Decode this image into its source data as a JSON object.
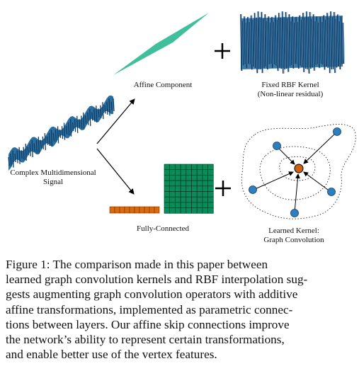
{
  "labels": {
    "affine": "Affine Component",
    "rbf_line1": "Fixed RBF Kernel",
    "rbf_line2": "(Non-linear residual)",
    "signal_line1": "Complex Multidimensional",
    "signal_line2": "Signal",
    "fully_connected": "Fully-Connected",
    "learned_line1": "Learned Kernel:",
    "learned_line2": "Graph Convolution",
    "plus": "+"
  },
  "caption": {
    "lines": [
      "Figure 1: The comparison made in this paper between",
      "learned graph convolution kernels and RBF interpolation sug-",
      "gests augmenting graph convolution operators with additive",
      "affine transformations, implemented as parametric connec-",
      "tions between layers. Our affine skip connections improve",
      "the network’s ability to represent certain transformations,",
      "and enable better use of the vertex features."
    ]
  },
  "colors": {
    "affine_plane": "#3fbf9b",
    "rbf_surface": "#1f5f93",
    "signal_surface": "#2a6fa0",
    "grid_matrix": "#0b8a5a",
    "fc_vector": "#d96a10",
    "node_blue": "#2f7fc0",
    "node_center": "#d0620f"
  },
  "icons": {
    "plus_top": "plus-icon",
    "plus_bottom": "plus-icon"
  }
}
